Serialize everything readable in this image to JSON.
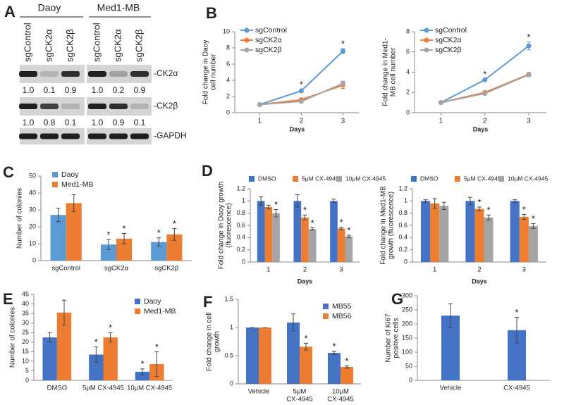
{
  "panel_a": {
    "panel": "A",
    "groups": [
      "Daoy",
      "Med1-MB"
    ],
    "lanes": [
      "sgControl",
      "sgCK2α",
      "sgCK2β",
      "sgControl",
      "sgCK2α",
      "sgCK2β"
    ],
    "bands": [
      {
        "label": "-CK2α",
        "quantification": [
          "1.0",
          "0.1",
          "0.9",
          "1.0",
          "0.2",
          "0.9"
        ]
      },
      {
        "label": "-CK2β",
        "quantification": [
          "1.0",
          "0.8",
          "0.1",
          "1.0",
          "0.9",
          "0.1"
        ]
      },
      {
        "label": "-GAPDH"
      }
    ]
  },
  "chart_data": [
    {
      "type": "line",
      "panel": "B",
      "ylabel": [
        "Fold change in Daoy",
        "cell number"
      ],
      "xlabel": "Days",
      "x": [
        1,
        2,
        3
      ],
      "xlim": [
        0.4,
        3.4
      ],
      "xticks": [
        1,
        2,
        3
      ],
      "ylim": [
        0,
        10
      ],
      "yticks": [
        0,
        2,
        4,
        6,
        8,
        10
      ],
      "legend": "top-left",
      "grid": false,
      "series": [
        {
          "name": "sgControl",
          "color": "#5b9bd5",
          "values": [
            1,
            2.7,
            7.6
          ],
          "errors": [
            0.1,
            0.15,
            0.3
          ],
          "stars": [
            null,
            "*",
            "*"
          ]
        },
        {
          "name": "sgCK2α",
          "color": "#ed7d31",
          "values": [
            1,
            1.6,
            3.4
          ],
          "errors": [
            0.05,
            0.2,
            0.4
          ],
          "stars": [
            null,
            null,
            null
          ]
        },
        {
          "name": "sgCK2β",
          "color": "#a5a5a5",
          "values": [
            1,
            1.4,
            3.6
          ],
          "errors": [
            0.05,
            0.15,
            0.3
          ],
          "stars": [
            null,
            null,
            null
          ]
        }
      ]
    },
    {
      "type": "line",
      "ylabel": [
        "Fold change in Med1-",
        "MB cell number"
      ],
      "xlabel": "Days",
      "x": [
        1,
        2,
        3
      ],
      "xlim": [
        0.4,
        3.4
      ],
      "xticks": [
        1,
        2,
        3
      ],
      "ylim": [
        0,
        8
      ],
      "yticks": [
        0,
        2,
        4,
        6,
        8
      ],
      "legend": "top-left",
      "grid": false,
      "series": [
        {
          "name": "sgControl",
          "color": "#5b9bd5",
          "values": [
            1,
            3.25,
            6.6
          ],
          "errors": [
            0.05,
            0.1,
            0.4
          ],
          "stars": [
            null,
            "*",
            "*"
          ]
        },
        {
          "name": "sgCK2α",
          "color": "#ed7d31",
          "values": [
            1,
            2,
            3.8
          ],
          "errors": [
            0.05,
            0.1,
            0.15
          ],
          "stars": [
            null,
            null,
            null
          ]
        },
        {
          "name": "sgCK2β",
          "color": "#a5a5a5",
          "values": [
            1,
            1.9,
            3.75
          ],
          "errors": [
            0.05,
            0.1,
            0.2
          ],
          "stars": [
            null,
            null,
            null
          ]
        }
      ]
    },
    {
      "type": "bar",
      "panel": "C",
      "ylabel": [
        "Number of colonies"
      ],
      "categories": [
        "sgControl",
        "sgCK2α",
        "sgCK2β"
      ],
      "ylim": [
        0,
        50
      ],
      "yticks": [
        0,
        10,
        20,
        30,
        40,
        50
      ],
      "legend": "top-left",
      "grid": false,
      "series": [
        {
          "name": "Daoy",
          "color": "#5b9bd5",
          "values": [
            27,
            9.5,
            11
          ],
          "errors": [
            4,
            3,
            2.5
          ],
          "stars": [
            null,
            "*",
            "*"
          ]
        },
        {
          "name": "Med1-MB",
          "color": "#ed7d31",
          "values": [
            34,
            13,
            15.5
          ],
          "errors": [
            5,
            3,
            3.5
          ],
          "stars": [
            null,
            "*",
            "*"
          ]
        }
      ]
    },
    {
      "type": "bar",
      "panel": "D",
      "ylabel": [
        "Fold change in Daoy growth",
        "(fluorescence)"
      ],
      "xlabel": "Days",
      "categories": [
        1,
        2,
        3
      ],
      "ylim": [
        0,
        1.2
      ],
      "yticks": [
        0,
        0.2,
        0.4,
        0.6,
        0.8,
        1,
        1.2
      ],
      "legend": "top",
      "grid": false,
      "series": [
        {
          "name": "DMSO",
          "color": "#4472c4",
          "values": [
            1,
            1,
            1
          ],
          "errors": [
            0.07,
            0.1,
            0.03
          ],
          "stars": [
            null,
            null,
            null
          ]
        },
        {
          "name": "5μM CX-4945",
          "color": "#ed7d31",
          "values": [
            0.9,
            0.73,
            0.55
          ],
          "errors": [
            0.03,
            0.04,
            0.02
          ],
          "stars": [
            null,
            "*",
            "*"
          ]
        },
        {
          "name": "10μM CX-4945",
          "color": "#a5a5a5",
          "values": [
            0.8,
            0.54,
            0.42
          ],
          "errors": [
            0.06,
            0.02,
            0.02
          ],
          "stars": [
            "*",
            "*",
            "*"
          ]
        }
      ]
    },
    {
      "type": "bar",
      "ylabel": [
        "Fold change in Med1-MB",
        "growth (fluorescence)"
      ],
      "xlabel": "Days",
      "categories": [
        1,
        2,
        3
      ],
      "ylim": [
        0,
        1.2
      ],
      "yticks": [
        0,
        0.2,
        0.4,
        0.6,
        0.8,
        1,
        1.2
      ],
      "legend": "top",
      "grid": false,
      "series": [
        {
          "name": "DMSO",
          "color": "#4472c4",
          "values": [
            1,
            1,
            1
          ],
          "errors": [
            0.02,
            0.06,
            0.02
          ],
          "stars": [
            null,
            null,
            null
          ]
        },
        {
          "name": "5μM CX-4945",
          "color": "#ed7d31",
          "values": [
            0.96,
            0.87,
            0.74
          ],
          "errors": [
            0.08,
            0.03,
            0.04
          ],
          "stars": [
            null,
            "*",
            "*"
          ]
        },
        {
          "name": "10μM CX-4945",
          "color": "#a5a5a5",
          "values": [
            0.92,
            0.73,
            0.59
          ],
          "errors": [
            0.06,
            0.04,
            0.04
          ],
          "stars": [
            null,
            "*",
            "*"
          ]
        }
      ]
    },
    {
      "type": "bar",
      "panel": "E",
      "ylabel": [
        "Number of colonies"
      ],
      "categories": [
        "DMSO",
        "5μM CX-4945",
        "10μM CX-4945"
      ],
      "ylim": [
        0,
        45
      ],
      "yticks": [
        0,
        5,
        10,
        15,
        20,
        25,
        30,
        35,
        40,
        45
      ],
      "legend": "top-right",
      "grid": false,
      "series": [
        {
          "name": "Daoy",
          "color": "#4472c4",
          "values": [
            22.5,
            13.5,
            4.5
          ],
          "errors": [
            2.5,
            4,
            1.5
          ],
          "stars": [
            null,
            "*",
            "*"
          ]
        },
        {
          "name": "Med1-MB",
          "color": "#ed7d31",
          "values": [
            35.5,
            22.5,
            8.5
          ],
          "errors": [
            6.5,
            2.5,
            6.5
          ],
          "stars": [
            null,
            "*",
            "*"
          ]
        }
      ]
    },
    {
      "type": "bar",
      "panel": "F",
      "ylabel": [
        "Fold change in cell",
        "growth"
      ],
      "categories": [
        [
          "Vehicle"
        ],
        [
          "5μM",
          "CX-4945"
        ],
        [
          "10μM",
          "CX-4945"
        ]
      ],
      "ylim": [
        0,
        1.5
      ],
      "yticks": [
        0,
        0.5,
        1,
        1.5
      ],
      "legend": "top-right",
      "grid": false,
      "series": [
        {
          "name": "MB55",
          "color": "#4472c4",
          "values": [
            1,
            1.09,
            0.55
          ],
          "errors": [
            0,
            0.15,
            0.03
          ],
          "stars": [
            null,
            null,
            "*"
          ]
        },
        {
          "name": "MB56",
          "color": "#ed7d31",
          "values": [
            1,
            0.66,
            0.3
          ],
          "errors": [
            0,
            0.06,
            0.02
          ],
          "stars": [
            null,
            "*",
            "*"
          ]
        }
      ]
    },
    {
      "type": "bar",
      "panel": "G",
      "ylabel": [
        "Number  of Ki67",
        "positive cells"
      ],
      "categories": [
        "Vehicle",
        "CX-4945"
      ],
      "ylim": [
        0,
        300
      ],
      "yticks": [
        0,
        50,
        100,
        150,
        200,
        250,
        300
      ],
      "grid": false,
      "series": [
        {
          "color": "#4472c4",
          "values": [
            230,
            178
          ],
          "errors": [
            42,
            45
          ],
          "stars": [
            null,
            "*"
          ]
        }
      ]
    }
  ]
}
